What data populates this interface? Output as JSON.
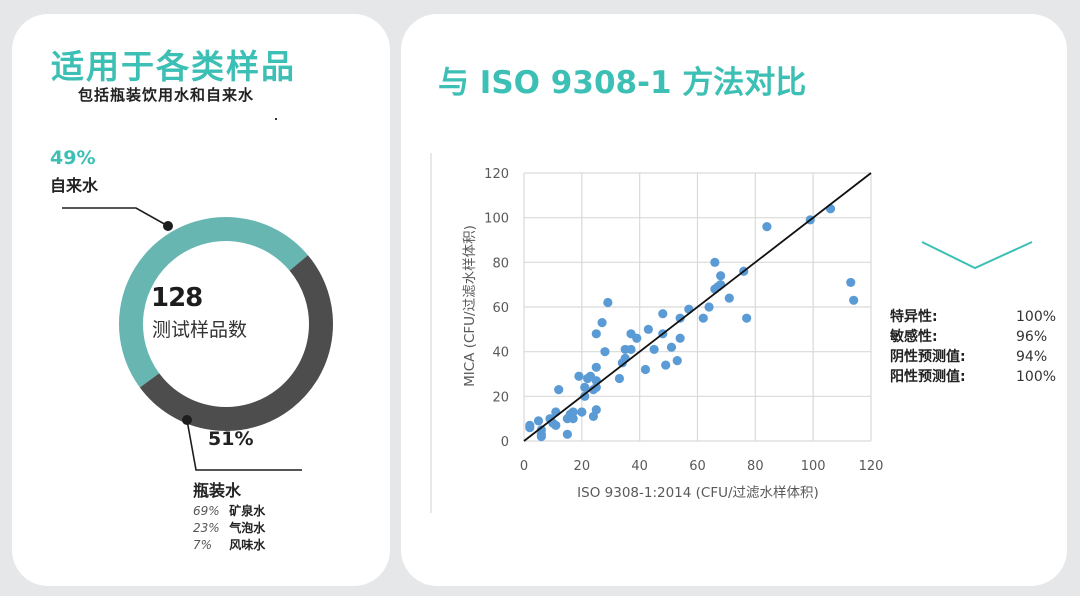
{
  "left_card": {
    "title": "适用于各类样品",
    "subtitle": "包括瓶装饮用水和自来水",
    "donut": {
      "center_value": "128",
      "center_label": "测试样品数",
      "tap_water": {
        "pct": "49%",
        "label": "自来水",
        "color": "#67b6b2"
      },
      "bottled_water": {
        "pct": "51%",
        "label": "瓶装水",
        "color": "#4e4d4e",
        "breakdown": [
          {
            "pct": "69%",
            "label": "矿泉水"
          },
          {
            "pct": "23%",
            "label": "气泡水"
          },
          {
            "pct": "7%",
            "label": "风味水"
          }
        ]
      }
    }
  },
  "right_card": {
    "title": "与 ISO 9308-1  方法对比",
    "stats": [
      {
        "label": "特异性:",
        "value": "100%"
      },
      {
        "label": "敏感性:",
        "value": "96%"
      },
      {
        "label": "阴性预测值:",
        "value": "94%"
      },
      {
        "label": "阳性预测值:",
        "value": "100%"
      }
    ]
  },
  "colors": {
    "accent": "#3cbfb4",
    "teal_segment": "#67b6b2",
    "dark_segment": "#4e4d4e",
    "scatter_point": "#5b9bd5",
    "background": "#e6e7e8"
  },
  "chart_data": [
    {
      "type": "pie",
      "title": "128 测试样品数",
      "categories": [
        "自来水",
        "瓶装水"
      ],
      "values": [
        49,
        51
      ],
      "subcategories": {
        "瓶装水": {
          "categories": [
            "矿泉水",
            "气泡水",
            "风味水"
          ],
          "values": [
            69,
            23,
            7
          ]
        }
      }
    },
    {
      "type": "scatter",
      "title": "与 ISO 9308-1 方法对比",
      "xlabel": "ISO 9308-1:2014 (CFU/过滤水样体积)",
      "ylabel": "MICA (CFU/过滤水样体积)",
      "xlim": [
        0,
        120
      ],
      "ylim": [
        0,
        120
      ],
      "xticks": [
        0,
        20,
        40,
        60,
        80,
        100,
        120
      ],
      "yticks": [
        0,
        20,
        40,
        60,
        80,
        100,
        120
      ],
      "grid": true,
      "reference_line": {
        "from": [
          0,
          0
        ],
        "to": [
          120,
          120
        ]
      },
      "points": [
        [
          2,
          7
        ],
        [
          2,
          6
        ],
        [
          5,
          9
        ],
        [
          6,
          5
        ],
        [
          6,
          3
        ],
        [
          6,
          2
        ],
        [
          9,
          10
        ],
        [
          10,
          8
        ],
        [
          11,
          13
        ],
        [
          11,
          7
        ],
        [
          12,
          23
        ],
        [
          15,
          10
        ],
        [
          15,
          3
        ],
        [
          16,
          12
        ],
        [
          17,
          13
        ],
        [
          17,
          10
        ],
        [
          19,
          29
        ],
        [
          20,
          13
        ],
        [
          21,
          24
        ],
        [
          21,
          20
        ],
        [
          22,
          28
        ],
        [
          23,
          29
        ],
        [
          24,
          23
        ],
        [
          24,
          11
        ],
        [
          25,
          27
        ],
        [
          25,
          24
        ],
        [
          25,
          14
        ],
        [
          25,
          33
        ],
        [
          25,
          48
        ],
        [
          27,
          53
        ],
        [
          28,
          40
        ],
        [
          29,
          62
        ],
        [
          33,
          28
        ],
        [
          34,
          35
        ],
        [
          35,
          37
        ],
        [
          35,
          41
        ],
        [
          37,
          41
        ],
        [
          37,
          48
        ],
        [
          39,
          46
        ],
        [
          42,
          32
        ],
        [
          43,
          50
        ],
        [
          45,
          41
        ],
        [
          48,
          48
        ],
        [
          48,
          57
        ],
        [
          49,
          34
        ],
        [
          51,
          42
        ],
        [
          53,
          36
        ],
        [
          54,
          46
        ],
        [
          54,
          55
        ],
        [
          57,
          59
        ],
        [
          62,
          55
        ],
        [
          64,
          60
        ],
        [
          66,
          68
        ],
        [
          66,
          80
        ],
        [
          67,
          69
        ],
        [
          68,
          74
        ],
        [
          68,
          70
        ],
        [
          71,
          64
        ],
        [
          76,
          76
        ],
        [
          77,
          55
        ],
        [
          84,
          96
        ],
        [
          99,
          99
        ],
        [
          106,
          104
        ],
        [
          113,
          71
        ],
        [
          114,
          63
        ]
      ],
      "annotations": [
        "特异性: 100%",
        "敏感性: 96%",
        "阴性预测值: 94%",
        "阳性预测值: 100%"
      ]
    }
  ]
}
